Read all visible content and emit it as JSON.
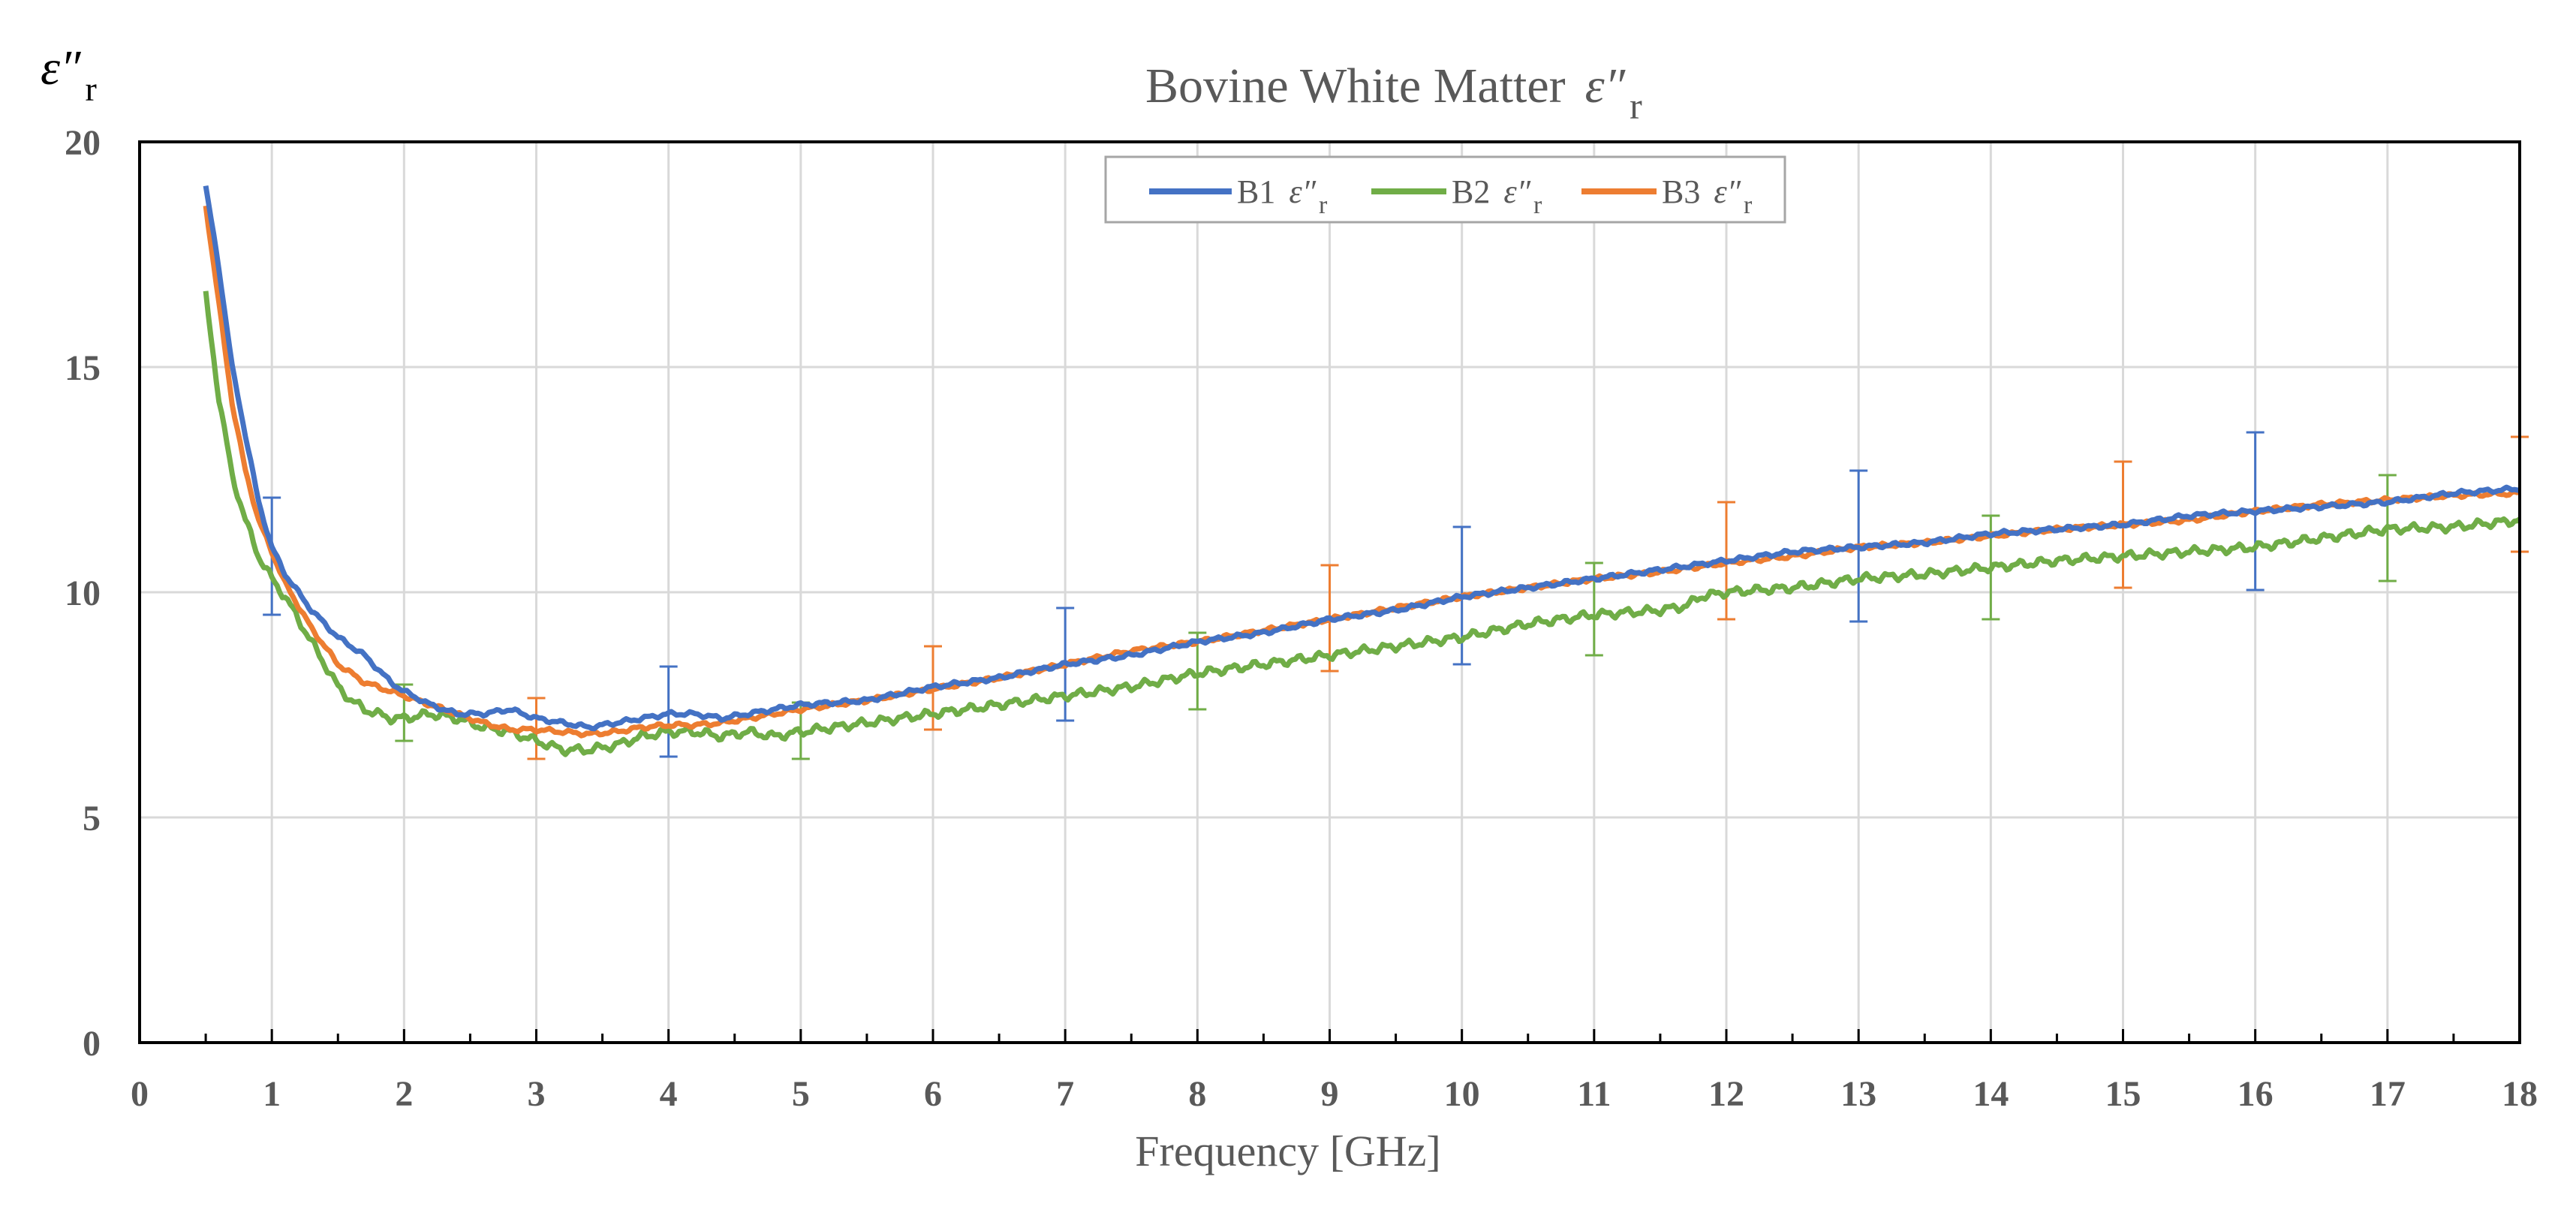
{
  "chart_data": {
    "type": "line",
    "title": "Bovine White Matter",
    "title_symbol": "ε″",
    "title_subscript": "r",
    "xlabel": "Frequency [GHz]",
    "ylabel_symbol": "ε″",
    "ylabel_subscript": "r",
    "xlim": [
      0,
      18
    ],
    "ylim": [
      0,
      20
    ],
    "x_ticks": [
      0,
      1,
      2,
      3,
      4,
      5,
      6,
      7,
      8,
      9,
      10,
      11,
      12,
      13,
      14,
      15,
      16,
      17,
      18
    ],
    "x_tick_labels": [
      "0",
      "1",
      "2",
      "3",
      "4",
      "5",
      "6",
      "7",
      "8",
      "9",
      "10",
      "11",
      "12",
      "13",
      "14",
      "15",
      "16",
      "17",
      "18"
    ],
    "y_ticks": [
      0,
      5,
      10,
      15,
      20
    ],
    "y_tick_labels": [
      "0",
      "5",
      "10",
      "15",
      "20"
    ],
    "grid": true,
    "legend_position": "top-center",
    "series": [
      {
        "name": "B1",
        "legend_label": "B1",
        "legend_symbol": "ε″",
        "legend_subscript": "r",
        "color": "#4472C4",
        "x": [
          0.5,
          0.6,
          0.7,
          0.8,
          0.9,
          1.0,
          1.1,
          1.2,
          1.3,
          1.4,
          1.5,
          1.6,
          1.7,
          1.8,
          1.9,
          2.0,
          2.2,
          2.4,
          2.6,
          2.8,
          3.0,
          3.2,
          3.4,
          3.6,
          3.8,
          4.0,
          4.2,
          4.4,
          4.6,
          4.8,
          5.0,
          5.5,
          6.0,
          6.5,
          7.0,
          7.5,
          8.0,
          8.5,
          9.0,
          9.5,
          10.0,
          10.5,
          11.0,
          11.5,
          12.0,
          12.5,
          13.0,
          13.5,
          14.0,
          14.5,
          15.0,
          15.5,
          16.0,
          16.5,
          17.0,
          17.5,
          18.0
        ],
        "y": [
          19.0,
          17.2,
          15.0,
          13.5,
          12.0,
          11.0,
          10.4,
          10.0,
          9.6,
          9.3,
          9.0,
          8.8,
          8.6,
          8.3,
          8.0,
          7.8,
          7.5,
          7.3,
          7.3,
          7.4,
          7.2,
          7.1,
          7.0,
          7.1,
          7.2,
          7.3,
          7.3,
          7.2,
          7.3,
          7.4,
          7.5,
          7.6,
          7.9,
          8.1,
          8.4,
          8.6,
          8.9,
          9.1,
          9.4,
          9.6,
          9.9,
          10.1,
          10.3,
          10.5,
          10.7,
          10.9,
          11.0,
          11.1,
          11.3,
          11.4,
          11.5,
          11.7,
          11.8,
          11.9,
          12.0,
          12.2,
          12.3
        ],
        "error_bars": [
          {
            "x": 1.0,
            "y": 10.8,
            "low": 9.5,
            "high": 12.1
          },
          {
            "x": 4.0,
            "y": 7.35,
            "low": 6.35,
            "high": 8.35
          },
          {
            "x": 7.0,
            "y": 8.4,
            "low": 7.15,
            "high": 9.65
          },
          {
            "x": 10.0,
            "y": 9.9,
            "low": 8.4,
            "high": 11.45
          },
          {
            "x": 13.0,
            "y": 11.0,
            "low": 9.35,
            "high": 12.7
          },
          {
            "x": 16.0,
            "y": 11.8,
            "low": 10.05,
            "high": 13.55
          }
        ]
      },
      {
        "name": "B2",
        "legend_label": "B2",
        "legend_symbol": "ε″",
        "legend_subscript": "r",
        "color": "#70AD47",
        "x": [
          0.5,
          0.6,
          0.7,
          0.8,
          0.9,
          1.0,
          1.1,
          1.2,
          1.3,
          1.4,
          1.5,
          1.6,
          1.7,
          1.8,
          1.9,
          2.0,
          2.2,
          2.4,
          2.6,
          2.8,
          3.0,
          3.2,
          3.4,
          3.6,
          3.8,
          4.0,
          4.2,
          4.4,
          4.6,
          4.8,
          5.0,
          5.5,
          6.0,
          6.5,
          7.0,
          7.5,
          8.0,
          8.5,
          9.0,
          9.5,
          10.0,
          10.5,
          11.0,
          11.5,
          11.7,
          11.8,
          12.0,
          12.5,
          13.0,
          13.5,
          14.0,
          14.5,
          15.0,
          15.5,
          16.0,
          16.5,
          17.0,
          17.5,
          18.0
        ],
        "y": [
          16.6,
          14.3,
          12.6,
          11.6,
          10.8,
          10.3,
          9.9,
          9.4,
          8.9,
          8.4,
          7.9,
          7.6,
          7.4,
          7.3,
          7.2,
          7.2,
          7.3,
          7.2,
          7.0,
          6.9,
          6.7,
          6.5,
          6.5,
          6.6,
          6.8,
          6.9,
          6.9,
          6.8,
          6.9,
          6.8,
          6.9,
          7.1,
          7.3,
          7.5,
          7.7,
          7.9,
          8.2,
          8.4,
          8.6,
          8.8,
          9.0,
          9.3,
          9.5,
          9.6,
          9.7,
          9.9,
          10.0,
          10.1,
          10.3,
          10.4,
          10.55,
          10.7,
          10.8,
          10.9,
          11.0,
          11.2,
          11.4,
          11.45,
          11.6
        ],
        "error_bars": [
          {
            "x": 2.0,
            "y": 7.3,
            "low": 6.7,
            "high": 7.95
          },
          {
            "x": 5.0,
            "y": 6.9,
            "low": 6.3,
            "high": 7.55
          },
          {
            "x": 8.0,
            "y": 8.25,
            "low": 7.4,
            "high": 9.1
          },
          {
            "x": 11.0,
            "y": 9.6,
            "low": 8.6,
            "high": 10.65
          },
          {
            "x": 14.0,
            "y": 10.55,
            "low": 9.4,
            "high": 11.7
          },
          {
            "x": 17.0,
            "y": 11.45,
            "low": 10.25,
            "high": 12.6
          }
        ]
      },
      {
        "name": "B3",
        "legend_label": "B3",
        "legend_symbol": "ε″",
        "legend_subscript": "r",
        "color": "#ED7D31",
        "x": [
          0.5,
          0.6,
          0.7,
          0.8,
          0.9,
          1.0,
          1.1,
          1.2,
          1.3,
          1.4,
          1.5,
          1.6,
          1.7,
          1.8,
          1.9,
          2.0,
          2.2,
          2.4,
          2.6,
          2.8,
          3.0,
          3.2,
          3.4,
          3.6,
          3.8,
          4.0,
          4.2,
          4.4,
          4.6,
          4.8,
          5.0,
          5.5,
          6.0,
          6.5,
          7.0,
          7.5,
          8.0,
          8.5,
          9.0,
          9.5,
          10.0,
          10.5,
          11.0,
          11.5,
          12.0,
          12.5,
          13.0,
          13.5,
          14.0,
          14.5,
          15.0,
          15.5,
          16.0,
          16.5,
          17.0,
          17.5,
          18.0
        ],
        "y": [
          18.6,
          16.4,
          14.2,
          12.7,
          11.6,
          10.9,
          10.2,
          9.7,
          9.2,
          8.8,
          8.4,
          8.2,
          8.0,
          7.9,
          7.8,
          7.7,
          7.5,
          7.3,
          7.1,
          6.95,
          6.95,
          6.9,
          6.85,
          6.9,
          7.0,
          7.05,
          7.05,
          7.1,
          7.2,
          7.3,
          7.4,
          7.6,
          7.85,
          8.1,
          8.4,
          8.7,
          8.9,
          9.15,
          9.4,
          9.65,
          9.9,
          10.1,
          10.3,
          10.45,
          10.65,
          10.8,
          11.0,
          11.1,
          11.25,
          11.4,
          11.5,
          11.6,
          11.8,
          11.95,
          12.05,
          12.15,
          12.2
        ],
        "error_bars": [
          {
            "x": 3.0,
            "y": 6.95,
            "low": 6.3,
            "high": 7.65
          },
          {
            "x": 6.0,
            "y": 7.85,
            "low": 6.95,
            "high": 8.8
          },
          {
            "x": 9.0,
            "y": 9.4,
            "low": 8.25,
            "high": 10.6
          },
          {
            "x": 12.0,
            "y": 10.65,
            "low": 9.4,
            "high": 12.0
          },
          {
            "x": 15.0,
            "y": 11.5,
            "low": 10.1,
            "high": 12.9
          },
          {
            "x": 18.0,
            "y": 12.2,
            "low": 10.9,
            "high": 13.45
          }
        ]
      }
    ]
  }
}
